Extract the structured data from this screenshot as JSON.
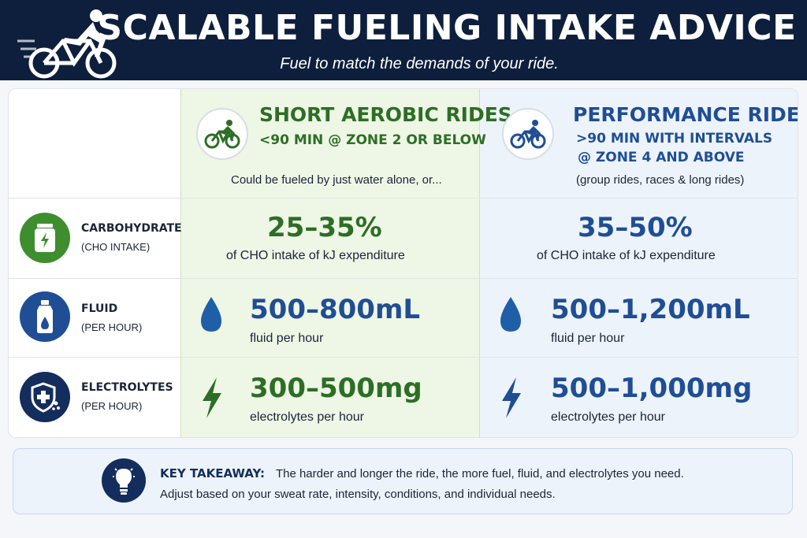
{
  "header": {
    "title": "SCALABLE FUELING INTAKE ADVICE",
    "subtitle": "Fuel to match the demands of your ride."
  },
  "columns": {
    "short": {
      "title": "SHORT AEROBIC RIDES",
      "detail": "<90 MIN @ ZONE 2 OR BELOW",
      "note": "Could be fueled by just water alone, or...",
      "color": "#2d6e25"
    },
    "performance": {
      "title": "PERFORMANCE RIDES",
      "detail_line1": ">90 MIN WITH INTERVALS",
      "detail_line2": "@ ZONE 4 AND ABOVE",
      "note": "(group rides, races & long rides)",
      "color": "#1f4e95"
    }
  },
  "rows": {
    "carbohydrate": {
      "label": "CARBOHYDRATE",
      "sublabel": "(CHO INTAKE)",
      "icon": "energy-gel-icon",
      "short_value": "25–35%",
      "short_desc": "of CHO intake of kJ expenditure",
      "perf_value": "35–50%",
      "perf_desc": "of CHO intake of kJ expenditure"
    },
    "fluid": {
      "label": "FLUID",
      "sublabel": "(PER HOUR)",
      "icon": "water-bottle-icon",
      "short_value": "500–800mL",
      "short_desc": "fluid per hour",
      "perf_value": "500–1,200mL",
      "perf_desc": "fluid per hour"
    },
    "electrolytes": {
      "label": "ELECTROLYTES",
      "sublabel": "(PER HOUR)",
      "icon": "shield-plus-icon",
      "short_value": "300–500mg",
      "short_desc": "electrolytes per hour",
      "perf_value": "500–1,000mg",
      "perf_desc": "electrolytes per hour"
    }
  },
  "takeaway": {
    "heading": "KEY TAKEAWAY:",
    "line1": "The harder and longer the ride, the more fuel, fluid, and electrolytes you need.",
    "line2": "Adjust based on your sweat rate, intensity, conditions, and individual needs."
  }
}
